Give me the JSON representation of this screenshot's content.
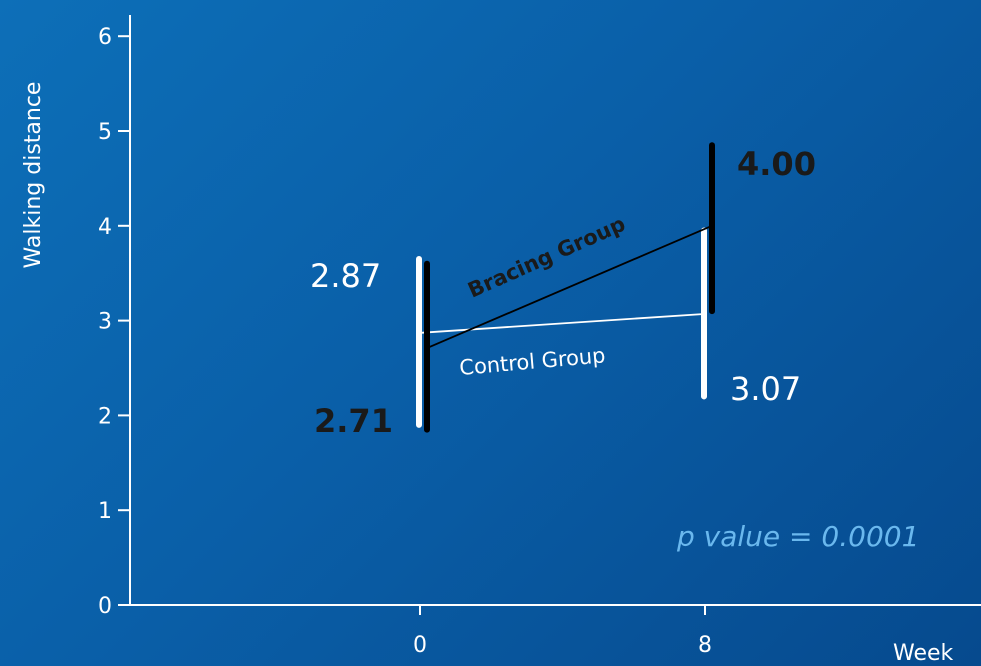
{
  "chart_data": {
    "type": "line",
    "ylabel": "Walking distance",
    "xlabel": "Week",
    "ylim": [
      0,
      6
    ],
    "yticks": [
      "0",
      "1",
      "2",
      "3",
      "4",
      "5",
      "6"
    ],
    "x": [
      0,
      8
    ],
    "xticks": [
      "0",
      "8"
    ],
    "series": [
      {
        "name": "Bracing Group",
        "color": "#000000",
        "values": [
          2.71,
          4.0
        ],
        "value_labels": [
          "2.71",
          "4.00"
        ],
        "error_low": [
          1.85,
          3.1
        ],
        "error_high": [
          3.6,
          4.85
        ]
      },
      {
        "name": "Control Group",
        "color": "#ffffff",
        "values": [
          2.87,
          3.07
        ],
        "value_labels": [
          "2.87",
          "3.07"
        ],
        "error_low": [
          1.9,
          2.2
        ],
        "error_high": [
          3.65,
          3.95
        ]
      }
    ],
    "annotation": "p value = 0.0001",
    "grid": false
  }
}
